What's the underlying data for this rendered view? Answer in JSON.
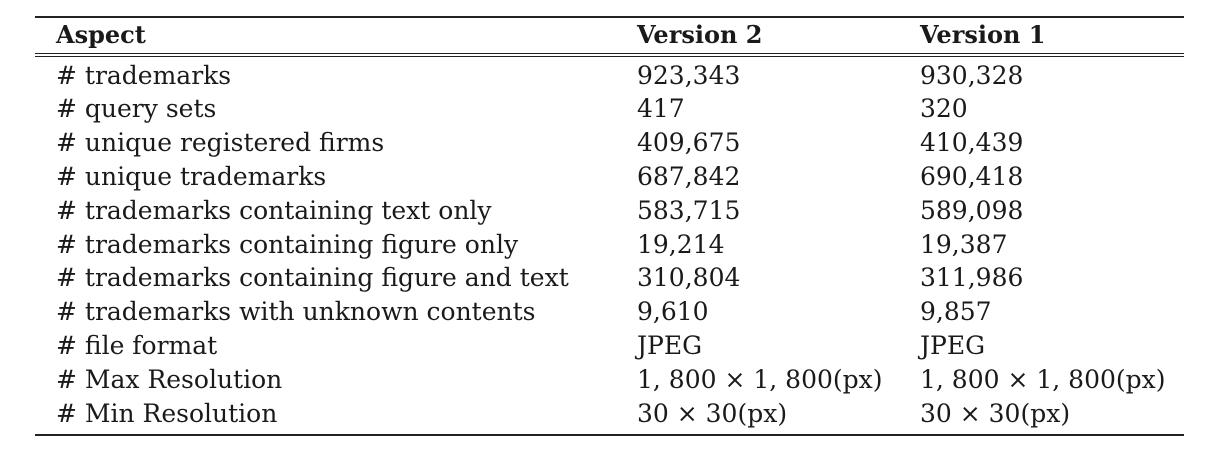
{
  "table": {
    "columns": [
      "Aspect",
      "Version 2",
      "Version 1"
    ],
    "rows": [
      [
        "# trademarks",
        "923,343",
        "930,328"
      ],
      [
        "# query sets",
        "417",
        "320"
      ],
      [
        "# unique registered firms",
        "409,675",
        "410,439"
      ],
      [
        "# unique trademarks",
        "687,842",
        "690,418"
      ],
      [
        "# trademarks containing text only",
        "583,715",
        "589,098"
      ],
      [
        "# trademarks containing figure only",
        "19,214",
        "19,387"
      ],
      [
        "# trademarks containing figure and text",
        "310,804",
        "311,986"
      ],
      [
        "# trademarks with unknown contents",
        "9,610",
        "9,857"
      ],
      [
        "# file format",
        "JPEG",
        "JPEG"
      ],
      [
        "# Max Resolution",
        "1, 800 × 1, 800(px)",
        "1, 800 × 1, 800(px)"
      ],
      [
        "# Min Resolution",
        "30 × 30(px)",
        "30 × 30(px)"
      ]
    ]
  }
}
